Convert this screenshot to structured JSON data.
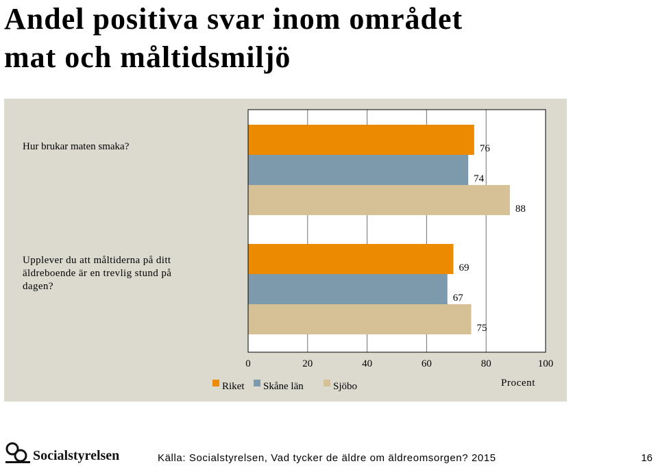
{
  "page": {
    "title_lines": [
      "Andel positiva svar inom området",
      "mat och måltidsmiljö"
    ],
    "source": "Källa: Socialstyrelsen, Vad tycker de äldre om äldreomsorgen? 2015",
    "page_number": "16",
    "logo_text": "Socialstyrelsen"
  },
  "chart_data": {
    "type": "bar",
    "orientation": "horizontal",
    "categories": [
      "Hur brukar maten smaka?",
      "Upplever du att måltiderna på ditt äldreboende är en trevlig stund på dagen?"
    ],
    "series": [
      {
        "name": "Riket",
        "color": "#ec8a00",
        "values": [
          76,
          69
        ]
      },
      {
        "name": "Skåne län",
        "color": "#7d9aac",
        "values": [
          74,
          67
        ]
      },
      {
        "name": "Sjöbo",
        "color": "#d6c196",
        "values": [
          88,
          75
        ]
      }
    ],
    "xlabel": "Procent",
    "xlim": [
      0,
      100
    ],
    "xticks": [
      "0",
      "20",
      "40",
      "60",
      "80",
      "100"
    ],
    "grid": true,
    "legend_position": "bottom"
  }
}
